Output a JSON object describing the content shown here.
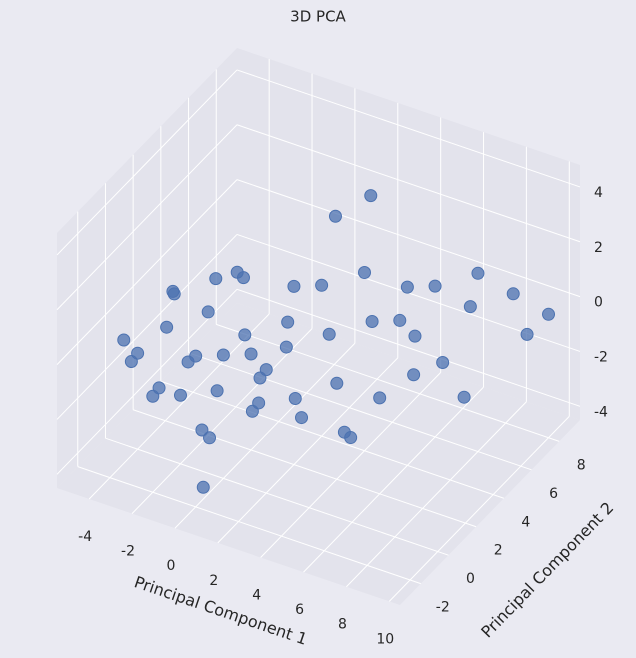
{
  "chart_data": {
    "type": "scatter3d",
    "title": "3D PCA",
    "xlabel": "Principal Component 1",
    "ylabel": "Principal Component 2",
    "color": "#4c72b0",
    "xlim": [
      -5.5,
      10.5
    ],
    "ylim": [
      -3.5,
      9.5
    ],
    "zlim": [
      -4.5,
      4.8
    ],
    "xticks": [
      -4,
      -2,
      0,
      2,
      4,
      6,
      8,
      10
    ],
    "yticks": [
      -2,
      0,
      2,
      4,
      6,
      8
    ],
    "zticks": [
      -4,
      -2,
      0,
      2,
      4
    ],
    "x": [
      -4,
      -4,
      -3,
      -3,
      -3,
      -2,
      -2,
      -2,
      -2,
      -1,
      -1,
      -1,
      -1,
      0,
      0,
      0,
      0,
      0,
      1,
      1,
      1,
      1,
      2,
      2,
      2,
      2,
      3,
      3,
      3,
      3,
      4,
      4,
      4,
      5,
      5,
      5,
      6,
      6,
      6,
      7,
      7,
      7,
      8,
      8,
      9,
      9,
      10,
      2,
      3,
      4,
      5,
      1,
      -1
    ],
    "y": [
      -1,
      0,
      -2,
      1,
      0,
      -1,
      2,
      0,
      -2,
      1,
      -1,
      3,
      0,
      0,
      2,
      -2,
      1,
      -1,
      0,
      3,
      -2,
      1,
      2,
      -1,
      0,
      4,
      1,
      -2,
      3,
      0,
      2,
      -1,
      4,
      3,
      1,
      5,
      4,
      2,
      6,
      5,
      3,
      7,
      6,
      5,
      7,
      8,
      8,
      5,
      6,
      3,
      6,
      -3,
      -2
    ],
    "z": [
      0,
      -1,
      0,
      1,
      -2,
      1,
      0,
      -2,
      -1,
      2,
      0,
      1,
      -3,
      0,
      -1,
      1,
      2.5,
      -2.5,
      1,
      -1,
      0,
      -2,
      2,
      -1,
      0,
      1,
      -2,
      1,
      0,
      2,
      -1,
      0,
      2,
      1,
      -2,
      0,
      2,
      -1,
      1,
      -1,
      1,
      0,
      2,
      -2,
      1,
      -1,
      0,
      3,
      3.5,
      -3.5,
      -2.5,
      -3,
      3
    ]
  }
}
